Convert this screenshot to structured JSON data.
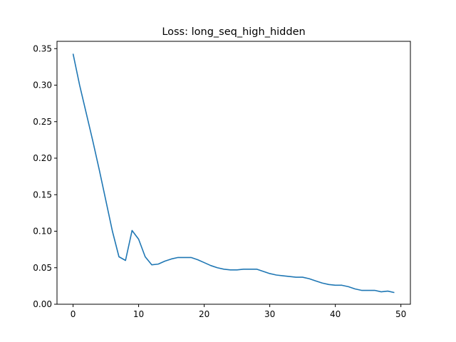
{
  "chart_data": {
    "type": "line",
    "title": "Loss: long_seq_high_hidden",
    "xlabel": "",
    "ylabel": "",
    "xlim": [
      -2.45,
      51.45
    ],
    "ylim": [
      0.0,
      0.36
    ],
    "x_ticks": [
      0,
      10,
      20,
      30,
      40,
      50
    ],
    "y_ticks": [
      0.0,
      0.05,
      0.1,
      0.15,
      0.2,
      0.25,
      0.3,
      0.35
    ],
    "grid": false,
    "line_color": "#1f77b4",
    "series": [
      {
        "x": [
          0,
          1,
          2,
          3,
          4,
          5,
          6,
          7,
          8,
          9,
          10,
          11,
          12,
          13,
          14,
          15,
          16,
          17,
          18,
          19,
          20,
          21,
          22,
          23,
          24,
          25,
          26,
          27,
          28,
          29,
          30,
          31,
          32,
          33,
          34,
          35,
          36,
          37,
          38,
          39,
          40,
          41,
          42,
          43,
          44,
          45,
          46,
          47,
          48,
          49
        ],
        "values": [
          0.343,
          0.3,
          0.262,
          0.224,
          0.184,
          0.142,
          0.1,
          0.065,
          0.06,
          0.101,
          0.089,
          0.065,
          0.054,
          0.055,
          0.059,
          0.062,
          0.064,
          0.064,
          0.064,
          0.061,
          0.057,
          0.053,
          0.05,
          0.048,
          0.047,
          0.047,
          0.048,
          0.048,
          0.048,
          0.045,
          0.042,
          0.04,
          0.039,
          0.038,
          0.037,
          0.037,
          0.035,
          0.032,
          0.029,
          0.027,
          0.026,
          0.026,
          0.024,
          0.021,
          0.019,
          0.019,
          0.019,
          0.017,
          0.018,
          0.016
        ]
      }
    ]
  }
}
